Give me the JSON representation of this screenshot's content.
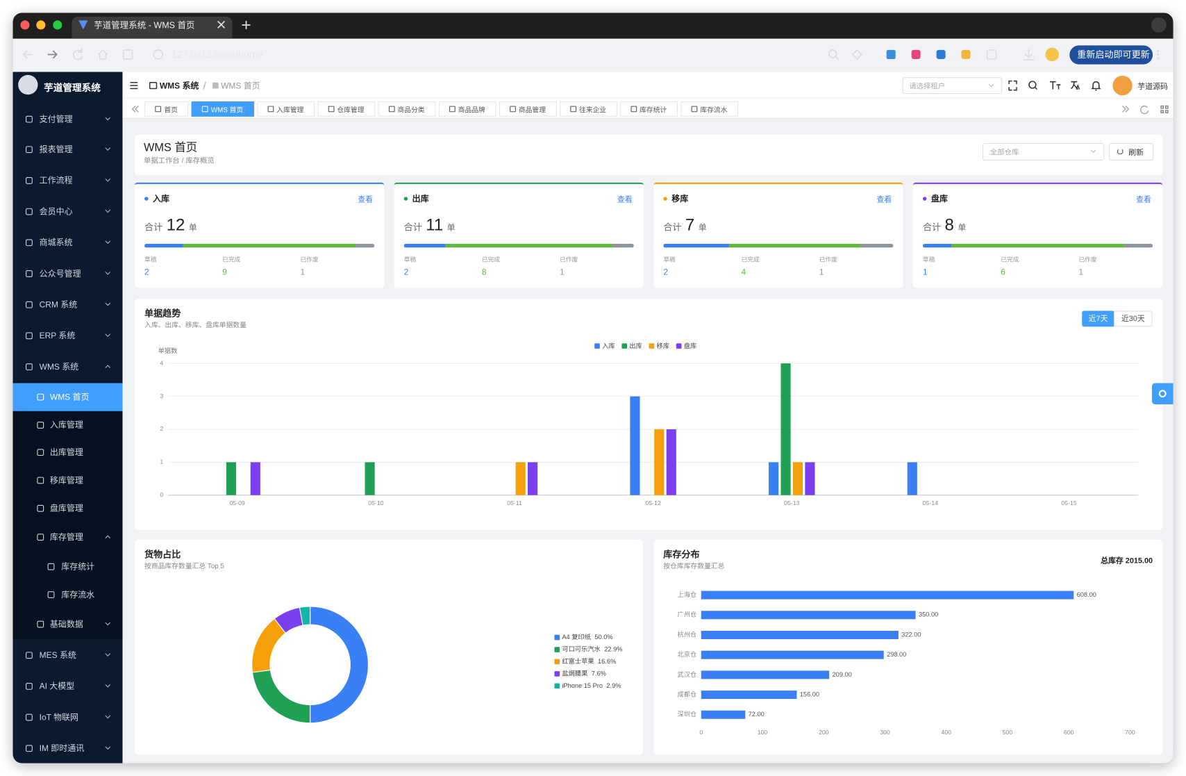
{
  "browser": {
    "tab_title": "芋道管理系统 - WMS 首页",
    "url": "127.0.0.1/wms/home",
    "update_button": "重新启动即可更新"
  },
  "sidebar": {
    "logo": "芋道管理系统",
    "menu": [
      {
        "label": "支付管理",
        "children": []
      },
      {
        "label": "报表管理",
        "children": []
      },
      {
        "label": "工作流程",
        "children": []
      },
      {
        "label": "会员中心",
        "children": []
      },
      {
        "label": "商城系统",
        "children": []
      },
      {
        "label": "公众号管理",
        "children": []
      },
      {
        "label": "CRM 系统",
        "children": []
      },
      {
        "label": "ERP 系统",
        "children": []
      },
      {
        "label": "WMS 系统",
        "expanded": true,
        "children": [
          {
            "label": "WMS 首页",
            "active": true
          },
          {
            "label": "入库管理"
          },
          {
            "label": "出库管理"
          },
          {
            "label": "移库管理"
          },
          {
            "label": "盘库管理"
          },
          {
            "label": "库存管理",
            "expanded": true,
            "children": [
              {
                "label": "库存统计"
              },
              {
                "label": "库存流水"
              }
            ]
          },
          {
            "label": "基础数据",
            "children": []
          }
        ]
      },
      {
        "label": "MES 系统",
        "children": []
      },
      {
        "label": "AI 大模型",
        "children": []
      },
      {
        "label": "IoT 物联网",
        "children": []
      },
      {
        "label": "IM 即时通讯",
        "children": []
      }
    ]
  },
  "header": {
    "breadcrumb": [
      "WMS 系统",
      "WMS 首页"
    ],
    "tenant_placeholder": "请选择租户",
    "user": "芋道源码",
    "tabs": [
      "首页",
      "WMS 首页",
      "入库管理",
      "仓库管理",
      "商品分类",
      "商品品牌",
      "商品管理",
      "往来企业",
      "库存统计",
      "库存流水"
    ],
    "active_tab": 1
  },
  "page_header": {
    "title": "WMS 首页",
    "subtitle": "单据工作台 / 库存概览",
    "warehouse_placeholder": "全部仓库",
    "refresh": "刷新"
  },
  "summary_cards": [
    {
      "title": "入库",
      "color": "#3a7ff6",
      "link": "查看",
      "total_prefix": "合计",
      "total": 12,
      "unit": "单",
      "stats": [
        {
          "label": "草稿",
          "value": 2,
          "color": "#3a7ff6"
        },
        {
          "label": "已完成",
          "value": 9,
          "color": "#5cb93a"
        },
        {
          "label": "已作废",
          "value": 1,
          "color": "#8f939a"
        }
      ]
    },
    {
      "title": "出库",
      "color": "#1fa055",
      "link": "查看",
      "total_prefix": "合计",
      "total": 11,
      "unit": "单",
      "stats": [
        {
          "label": "草稿",
          "value": 2,
          "color": "#3a7ff6"
        },
        {
          "label": "已完成",
          "value": 8,
          "color": "#5cb93a"
        },
        {
          "label": "已作废",
          "value": 1,
          "color": "#8f939a"
        }
      ]
    },
    {
      "title": "移库",
      "color": "#f5a00b",
      "link": "查看",
      "total_prefix": "合计",
      "total": 7,
      "unit": "单",
      "stats": [
        {
          "label": "草稿",
          "value": 2,
          "color": "#3a7ff6"
        },
        {
          "label": "已完成",
          "value": 4,
          "color": "#5cb93a"
        },
        {
          "label": "已作废",
          "value": 1,
          "color": "#8f939a"
        }
      ]
    },
    {
      "title": "盘库",
      "color": "#7b3ff2",
      "link": "查看",
      "total_prefix": "合计",
      "total": 8,
      "unit": "单",
      "stats": [
        {
          "label": "草稿",
          "value": 1,
          "color": "#3a7ff6"
        },
        {
          "label": "已完成",
          "value": 6,
          "color": "#5cb93a"
        },
        {
          "label": "已作废",
          "value": 1,
          "color": "#8f939a"
        }
      ]
    }
  ],
  "chart_data": [
    {
      "type": "bar",
      "title": "单据趋势",
      "subtitle": "入库、出库、移库、盘库单据数量",
      "ranges": [
        "近7天",
        "近30天"
      ],
      "active_range": 0,
      "y_label": "单据数",
      "categories": [
        "05-09",
        "05-10",
        "05-11",
        "05-12",
        "05-13",
        "05-14",
        "05-15"
      ],
      "series": [
        {
          "name": "入库",
          "color": "#3a7ff6",
          "values": [
            0,
            0,
            0,
            3,
            1,
            1,
            0
          ]
        },
        {
          "name": "出库",
          "color": "#1fa055",
          "values": [
            1,
            1,
            0,
            0,
            4,
            0,
            0
          ]
        },
        {
          "name": "移库",
          "color": "#f5a00b",
          "values": [
            0,
            0,
            1,
            2,
            1,
            0,
            0
          ]
        },
        {
          "name": "盘库",
          "color": "#7b3ff2",
          "values": [
            1,
            0,
            1,
            2,
            1,
            0,
            0
          ]
        }
      ],
      "ylim": [
        0,
        4
      ],
      "yticks": [
        0,
        1,
        2,
        3,
        4
      ],
      "grid": true,
      "legend": "top"
    },
    {
      "type": "pie",
      "donut": true,
      "title": "货物占比",
      "subtitle": "按商品库存数量汇总 Top 5",
      "categories": [
        "A4 复印纸",
        "可口可乐汽水",
        "红富士苹果",
        "盐焗腰果",
        "iPhone 15 Pro"
      ],
      "values": [
        50.0,
        22.9,
        16.6,
        7.6,
        2.9
      ],
      "value_labels": [
        "50.0%",
        "22.9%",
        "16.6%",
        "7.6%",
        "2.9%"
      ],
      "colors": [
        "#3a7ff6",
        "#1fa055",
        "#f5a00b",
        "#7b3ff2",
        "#13b5a6"
      ],
      "legend": "right"
    },
    {
      "type": "bar",
      "orientation": "horizontal",
      "title": "库存分布",
      "subtitle": "按仓库库存数量汇总",
      "summary": "总库存 2015.00",
      "categories": [
        "上海仓",
        "广州仓",
        "杭州仓",
        "北京仓",
        "武汉仓",
        "成都仓",
        "深圳仓"
      ],
      "values": [
        608,
        350,
        322,
        298,
        209,
        156,
        72
      ],
      "value_labels": [
        "608.00",
        "350.00",
        "322.00",
        "298.00",
        "209.00",
        "156.00",
        "72.00"
      ],
      "color": "#3a7ff6",
      "xlim": [
        0,
        700
      ],
      "xticks": [
        0,
        100,
        200,
        300,
        400,
        500,
        600,
        700
      ]
    }
  ]
}
